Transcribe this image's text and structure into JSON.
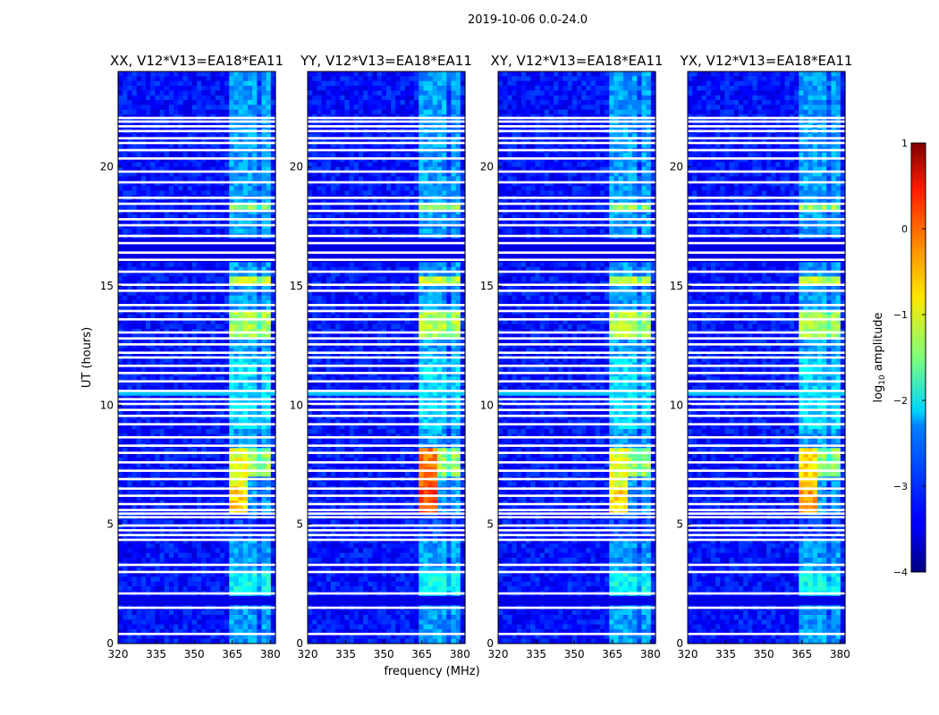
{
  "suptitle": "2019-10-06 0.0-24.0",
  "chart_data": {
    "type": "heatmap",
    "xlabel": "frequency (MHz)",
    "ylabel": "UT (hours)",
    "xlim": [
      320,
      382
    ],
    "ylim": [
      0,
      24
    ],
    "xticks": [
      320,
      335,
      350,
      365,
      380
    ],
    "yticks": [
      0,
      5,
      10,
      15,
      20
    ],
    "blank_rows_ut": [
      0.4,
      1.5,
      2.1,
      3.0,
      3.3,
      4.35,
      4.55,
      4.75,
      4.95,
      5.3,
      5.45,
      5.6,
      5.85,
      6.2,
      6.5,
      6.9,
      7.25,
      7.6,
      8.0,
      8.3,
      8.65,
      9.2,
      9.55,
      9.8,
      10.05,
      10.25,
      10.6,
      11.0,
      11.35,
      11.65,
      12.0,
      12.2,
      12.55,
      12.8,
      13.05,
      13.6,
      13.95,
      14.2,
      14.8,
      15.05,
      15.6,
      16.1,
      16.4,
      16.8,
      17.1,
      17.55,
      17.8,
      18.15,
      18.45,
      18.7,
      19.35,
      19.8,
      20.35,
      20.7,
      21.0,
      21.2,
      21.5,
      21.7,
      21.9,
      22.05
    ],
    "panels": [
      {
        "title": "XX, V12*V13=EA18*EA11",
        "peak_log_amp": -1.0
      },
      {
        "title": "YY, V12*V13=EA18*EA11",
        "peak_log_amp": 0.2
      },
      {
        "title": "XY, V12*V13=EA18*EA11",
        "peak_log_amp": -0.9
      },
      {
        "title": "YX, V12*V13=EA18*EA11",
        "peak_log_amp": -0.6
      }
    ],
    "colorbar": {
      "label": "log10 amplitude",
      "min": -4,
      "max": 1,
      "ticks": [
        1,
        0,
        -1,
        -2,
        -3,
        -4
      ],
      "tick_labels": [
        "1",
        "0",
        "−1",
        "−2",
        "−3",
        "−4"
      ]
    }
  }
}
